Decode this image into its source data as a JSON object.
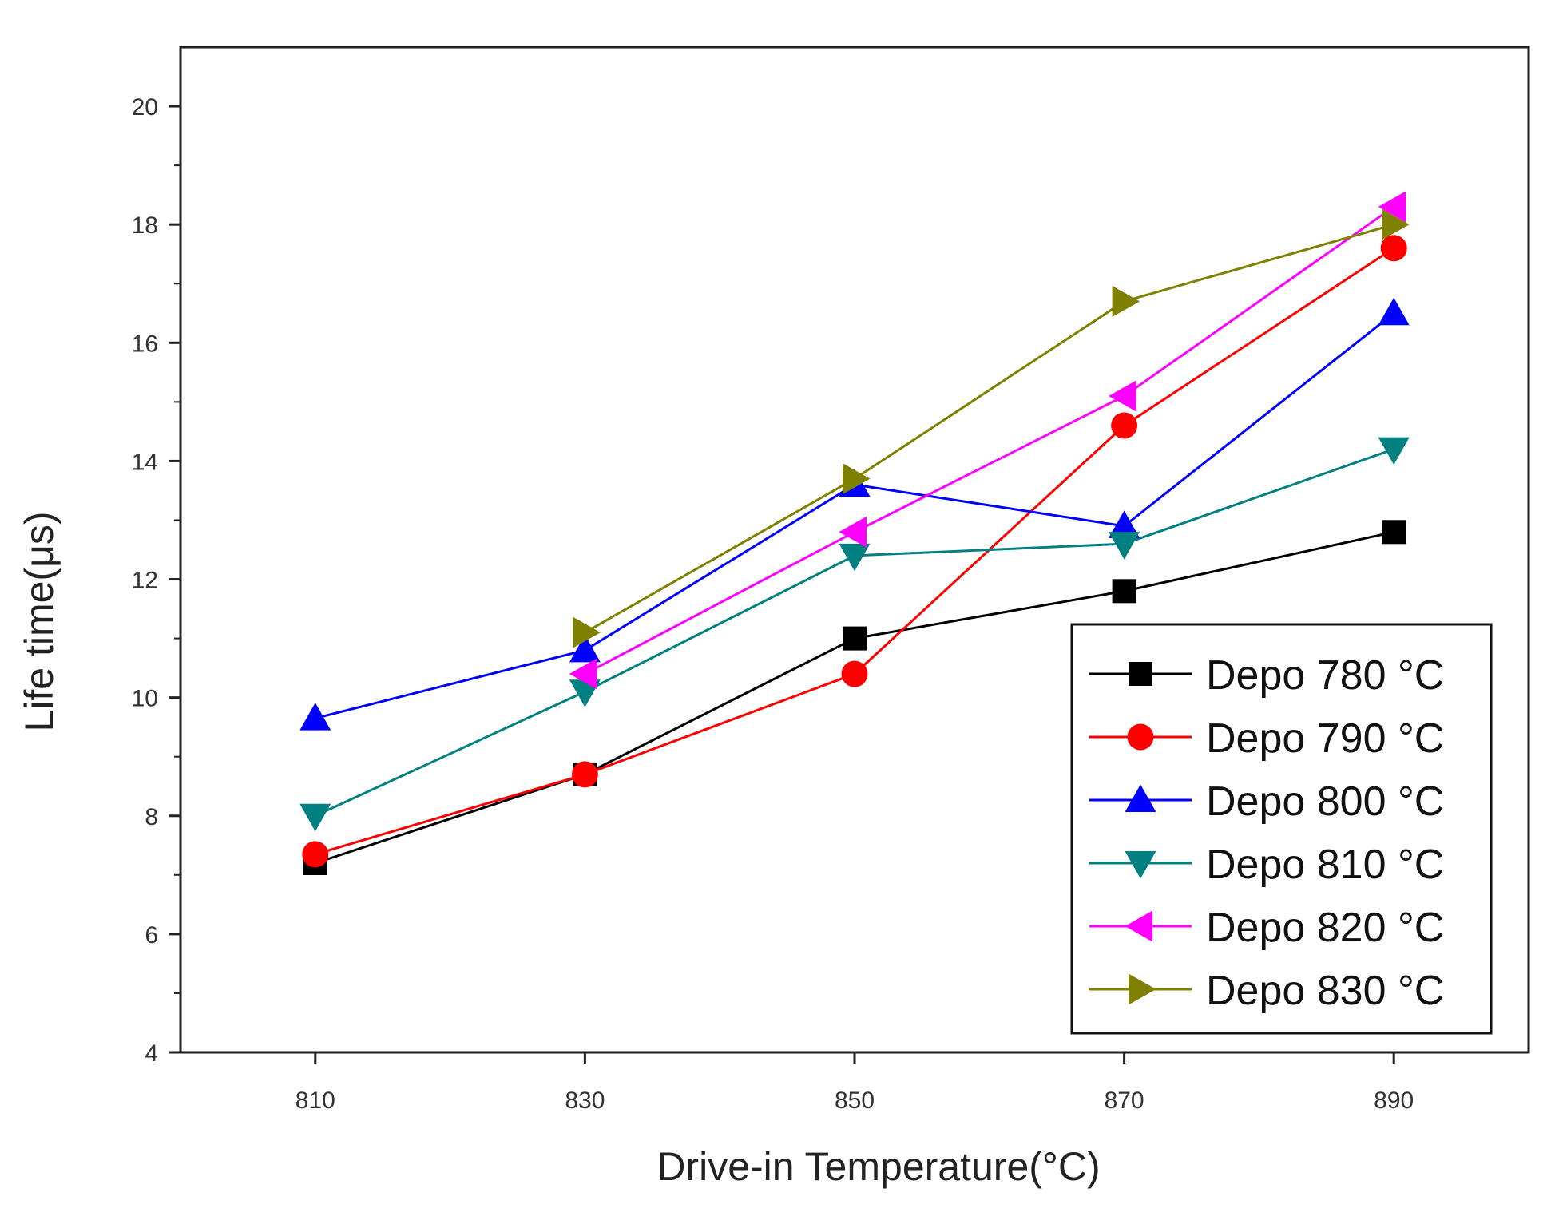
{
  "chart_data": {
    "type": "line",
    "xlabel": "Drive-in Temperature(°C)",
    "ylabel": "Life time(μs)",
    "x": [
      810,
      830,
      850,
      870,
      890
    ],
    "xlim": [
      800,
      900
    ],
    "ylim": [
      4,
      21
    ],
    "xticks": [
      "810",
      "830",
      "850",
      "870",
      "890"
    ],
    "yticks": [
      "4",
      "6",
      "8",
      "10",
      "12",
      "14",
      "16",
      "18",
      "20"
    ],
    "grid": false,
    "legend_position": "bottom-right",
    "series": [
      {
        "name": "Depo 780 °C",
        "color": "#000000",
        "marker": "square",
        "values": [
          7.2,
          8.7,
          11.0,
          11.8,
          12.8
        ]
      },
      {
        "name": "Depo 790 °C",
        "color": "#ff0000",
        "marker": "circle",
        "values": [
          7.35,
          8.7,
          10.4,
          14.6,
          17.6
        ]
      },
      {
        "name": "Depo 800 °C",
        "color": "#0000ff",
        "marker": "triangle-up",
        "values": [
          9.65,
          10.8,
          13.6,
          12.9,
          16.5
        ]
      },
      {
        "name": "Depo 810 °C",
        "color": "#008080",
        "marker": "triangle-down",
        "values": [
          8.0,
          10.1,
          12.4,
          12.6,
          14.2
        ]
      },
      {
        "name": "Depo 820 °C",
        "color": "#ff00ff",
        "marker": "triangle-left",
        "values": [
          null,
          10.4,
          12.8,
          15.1,
          18.3
        ]
      },
      {
        "name": "Depo 830 °C",
        "color": "#808000",
        "marker": "triangle-right",
        "values": [
          null,
          11.1,
          13.7,
          16.7,
          18.0
        ]
      }
    ]
  }
}
